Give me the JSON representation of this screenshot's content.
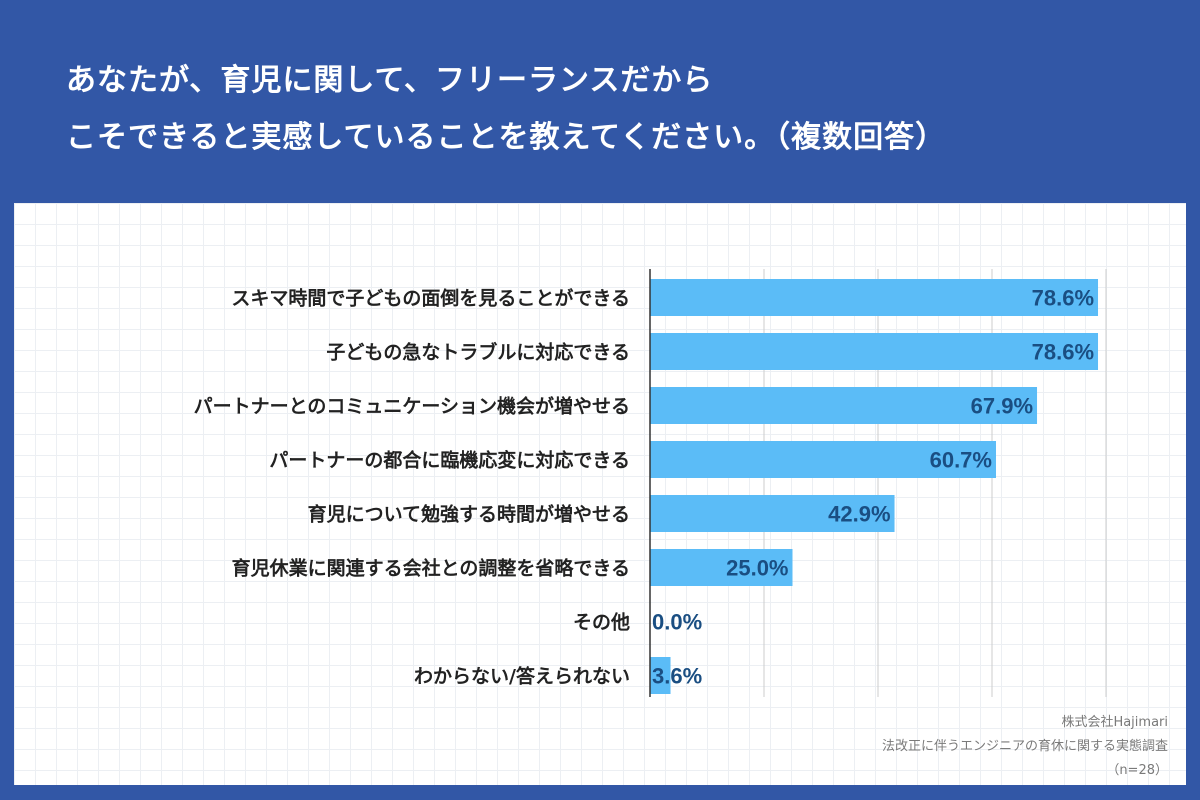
{
  "header": {
    "title_line1": "あなたが、育児に関して、フリーランスだから",
    "title_line2": "こそできると実感していることを教えてください。（複数回答）"
  },
  "footer": {
    "company": "株式会社Hajimari",
    "survey": "法改正に伴うエンジニアの育休に関する実態調査",
    "sample": "（n=28）"
  },
  "colors": {
    "background": "#3257a6",
    "bar": "#5bbcf7",
    "value_text": "#1a4e82",
    "label_text": "#222222",
    "gridline": "#cccccc"
  },
  "chart_data": {
    "type": "bar",
    "orientation": "horizontal",
    "title": "あなたが、育児に関して、フリーランスだからこそできると実感していることを教えてください。（複数回答）",
    "categories": [
      "スキマ時間で子どもの面倒を見ることができる",
      "子どもの急なトラブルに対応できる",
      "パートナーとのコミュニケーション機会が増やせる",
      "パートナーの都合に臨機応変に対応できる",
      "育児について勉強する時間が増やせる",
      "育児休業に関連する会社との調整を省略できる",
      "その他",
      "わからない/答えられない"
    ],
    "values": [
      78.6,
      78.6,
      67.9,
      60.7,
      42.9,
      25.0,
      0.0,
      3.6
    ],
    "value_labels": [
      "78.6%",
      "78.6%",
      "67.9%",
      "60.7%",
      "42.9%",
      "25.0%",
      "0.0%",
      "3.6%"
    ],
    "xlim": [
      0,
      80
    ],
    "gridlines_at": [
      20,
      40,
      60,
      80
    ],
    "unit": "%"
  }
}
